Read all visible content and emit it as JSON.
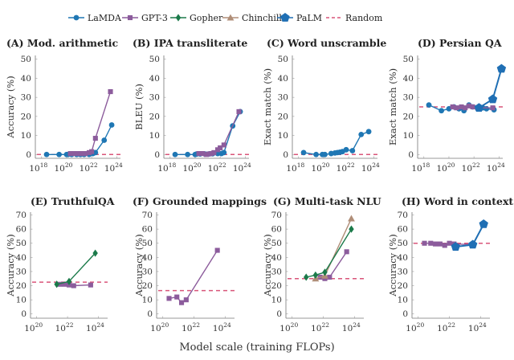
{
  "legend": [
    {
      "name": "LaMDA",
      "color": "#1f77b4",
      "marker": "circle"
    },
    {
      "name": "GPT-3",
      "color": "#8c5c9c",
      "marker": "square"
    },
    {
      "name": "Gopher",
      "color": "#1b7a4a",
      "marker": "diamond"
    },
    {
      "name": "Chinchilla",
      "color": "#b08e78",
      "marker": "triangle"
    },
    {
      "name": "PaLM",
      "color": "#1f6fb4",
      "marker": "pentagon"
    },
    {
      "name": "Random",
      "color": "#d9557a",
      "marker": "dashed"
    }
  ],
  "xlabel": "Model scale (training FLOPs)",
  "chart_data": [
    {
      "type": "line",
      "id": "A",
      "title": "(A) Mod. arithmetic",
      "ylabel": "Accuracy (%)",
      "x_log10_range": [
        17.5,
        24.3
      ],
      "x_ticks": [
        "18",
        "20",
        "22",
        "24"
      ],
      "ylim": [
        -2,
        52
      ],
      "y_ticks": [
        0,
        10,
        20,
        30,
        40,
        50
      ],
      "random": 0,
      "series": [
        {
          "name": "LaMDA",
          "x": [
            18.4,
            19.4,
            20.0,
            20.1,
            20.4,
            20.8,
            21.1,
            21.4,
            21.8,
            22.1,
            22.3,
            23.0,
            23.6
          ],
          "y": [
            0,
            0,
            0,
            0,
            0,
            0,
            0,
            0,
            0,
            0.5,
            1,
            7.5,
            15.5
          ]
        },
        {
          "name": "GPT-3",
          "x": [
            20.3,
            20.6,
            20.9,
            21.1,
            21.3,
            21.5,
            21.8,
            22.0,
            22.3,
            23.5
          ],
          "y": [
            0.5,
            0.5,
            0.5,
            0.5,
            0.5,
            0.5,
            1,
            1.5,
            8.5,
            33
          ]
        }
      ]
    },
    {
      "type": "line",
      "id": "B",
      "title": "(B) IPA transliterate",
      "ylabel": "BLEU (%)",
      "x_log10_range": [
        17.5,
        24.3
      ],
      "x_ticks": [
        "18",
        "20",
        "22",
        "24"
      ],
      "ylim": [
        -2,
        52
      ],
      "y_ticks": [
        0,
        10,
        20,
        30,
        40,
        50
      ],
      "random": 0,
      "series": [
        {
          "name": "LaMDA",
          "x": [
            18.4,
            19.4,
            20.0,
            20.1,
            20.4,
            20.8,
            21.1,
            21.4,
            21.8,
            22.1,
            22.3,
            23.0,
            23.6
          ],
          "y": [
            0,
            0,
            0,
            0.2,
            0.3,
            0.2,
            0.3,
            0.4,
            0.5,
            0.5,
            1,
            15,
            22.5
          ]
        },
        {
          "name": "GPT-3",
          "x": [
            20.3,
            20.6,
            20.9,
            21.1,
            21.3,
            21.5,
            21.8,
            22.0,
            22.3,
            23.5
          ],
          "y": [
            0.5,
            0.5,
            0,
            0.3,
            0.5,
            1,
            2.5,
            3.5,
            5,
            22.5
          ]
        }
      ]
    },
    {
      "type": "line",
      "id": "C",
      "title": "(C) Word unscramble",
      "ylabel": "Exact match (%)",
      "x_log10_range": [
        17.5,
        24.3
      ],
      "x_ticks": [
        "18",
        "20",
        "22",
        "24"
      ],
      "ylim": [
        -2,
        52
      ],
      "y_ticks": [
        0,
        10,
        20,
        30,
        40,
        50
      ],
      "random": 0,
      "series": [
        {
          "name": "LaMDA",
          "x": [
            18.4,
            19.4,
            19.9,
            20.1,
            20.6,
            20.9,
            21.1,
            21.3,
            21.5,
            21.8,
            22.3,
            23.0,
            23.6
          ],
          "y": [
            1,
            0,
            0,
            0,
            0.5,
            0.8,
            1,
            1.2,
            1.5,
            2.5,
            2,
            10.5,
            12
          ]
        }
      ]
    },
    {
      "type": "line",
      "id": "D",
      "title": "(D) Persian QA",
      "ylabel": "Exact match (%)",
      "x_log10_range": [
        17.5,
        24.3
      ],
      "x_ticks": [
        "18",
        "20",
        "22",
        "24"
      ],
      "ylim": [
        -2,
        52
      ],
      "y_ticks": [
        0,
        10,
        20,
        30,
        40,
        50
      ],
      "random": 25,
      "series": [
        {
          "name": "LaMDA",
          "x": [
            18.4,
            19.4,
            20.0,
            20.4,
            20.8,
            21.2,
            21.6,
            21.9,
            22.3,
            22.7,
            23.0,
            23.6
          ],
          "y": [
            26,
            23,
            24,
            25,
            24,
            23,
            26,
            25,
            24,
            24.5,
            24,
            23.5
          ]
        },
        {
          "name": "GPT-3",
          "x": [
            20.3,
            20.6,
            21.0,
            21.3,
            21.6,
            21.9,
            22.3,
            23.5
          ],
          "y": [
            25,
            24.5,
            25,
            24.5,
            25.5,
            25,
            24.5,
            24.5
          ]
        },
        {
          "name": "PaLM",
          "x": [
            22.4,
            23.5,
            24.2
          ],
          "y": [
            24.5,
            29,
            45
          ]
        }
      ]
    },
    {
      "type": "line",
      "id": "E",
      "title": "(E) TruthfulQA",
      "ylabel": "Accuracy (%)",
      "x_log10_range": [
        19.6,
        24.6
      ],
      "x_ticks": [
        "20",
        "22",
        "24"
      ],
      "ylim": [
        -3,
        72
      ],
      "y_ticks": [
        0,
        10,
        20,
        30,
        40,
        50,
        60,
        70
      ],
      "random": 22.5,
      "series": [
        {
          "name": "GPT-3",
          "x": [
            21.5,
            21.8,
            22.1,
            22.4,
            23.5
          ],
          "y": [
            21,
            21,
            20.5,
            20,
            20.5
          ]
        },
        {
          "name": "Gopher",
          "x": [
            21.3,
            22.1,
            23.8
          ],
          "y": [
            21,
            23,
            43
          ]
        }
      ]
    },
    {
      "type": "line",
      "id": "F",
      "title": "(F) Grounded mappings",
      "ylabel": "Accuracy (%)",
      "x_log10_range": [
        19.6,
        24.6
      ],
      "x_ticks": [
        "20",
        "22",
        "24"
      ],
      "ylim": [
        -3,
        72
      ],
      "y_ticks": [
        0,
        10,
        20,
        30,
        40,
        50,
        60,
        70
      ],
      "random": 16.5,
      "series": [
        {
          "name": "GPT-3",
          "x": [
            20.4,
            20.9,
            21.2,
            21.5,
            23.5
          ],
          "y": [
            11,
            12,
            8,
            10,
            45
          ]
        }
      ]
    },
    {
      "type": "line",
      "id": "G",
      "title": "(G) Multi-task NLU",
      "ylabel": "Accuracy (%)",
      "x_log10_range": [
        19.6,
        24.6
      ],
      "x_ticks": [
        "20",
        "22",
        "24"
      ],
      "ylim": [
        -3,
        72
      ],
      "y_ticks": [
        0,
        10,
        20,
        30,
        40,
        50,
        60,
        70
      ],
      "random": 25,
      "series": [
        {
          "name": "GPT-3",
          "x": [
            21.8,
            22.1,
            22.4,
            23.5
          ],
          "y": [
            26,
            25,
            26,
            44
          ]
        },
        {
          "name": "Chinchilla",
          "x": [
            21.5,
            22.1,
            23.8
          ],
          "y": [
            25,
            27,
            67.5
          ]
        },
        {
          "name": "Gopher",
          "x": [
            20.9,
            21.5,
            22.1,
            23.8
          ],
          "y": [
            26,
            27.5,
            29.5,
            60
          ]
        }
      ]
    },
    {
      "type": "line",
      "id": "H",
      "title": "(H) Word in context",
      "ylabel": "Accuracy (%)",
      "x_log10_range": [
        19.6,
        24.6
      ],
      "x_ticks": [
        "20",
        "22",
        "24"
      ],
      "ylim": [
        -3,
        72
      ],
      "y_ticks": [
        0,
        10,
        20,
        30,
        40,
        50,
        60,
        70
      ],
      "random": 50,
      "series": [
        {
          "name": "GPT-3",
          "x": [
            20.4,
            20.8,
            21.1,
            21.4,
            21.7,
            22.0,
            22.3,
            23.5
          ],
          "y": [
            50,
            50,
            49.5,
            49.5,
            48.5,
            50,
            49.5,
            49
          ]
        },
        {
          "name": "PaLM",
          "x": [
            22.4,
            23.5,
            24.2
          ],
          "y": [
            47.5,
            49,
            63.5
          ]
        }
      ]
    }
  ]
}
